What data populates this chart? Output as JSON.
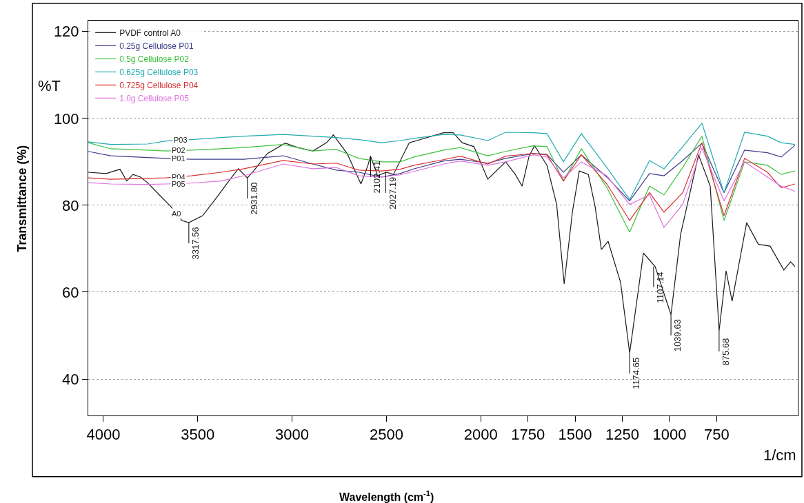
{
  "chart_data": {
    "type": "line",
    "xlabel": "Wavelength (cm$^{-1}$)",
    "ylabel": "Transmittance (%)",
    "x": [
      4080,
      3960,
      3766,
      3668,
      3533,
      3376,
      3255,
      3047,
      2890,
      2766,
      2646,
      2525,
      2427,
      2354,
      2197,
      2109,
      1963,
      1868,
      1722,
      1649,
      1562,
      1467,
      1332,
      1211,
      1106,
      1029,
      930,
      828,
      711,
      602,
      481,
      408,
      335
    ],
    "series": [
      {
        "name": "PVDF control A0",
        "color": "#1a1a1a",
        "x": [
          4080,
          3985,
          3912,
          3876,
          3843,
          3803,
          3766,
          3704,
          3642,
          3584,
          3547,
          3474,
          3401,
          3328,
          3285,
          3237,
          3204,
          3131,
          3036,
          2963,
          2890,
          2817,
          2781,
          2708,
          2635,
          2598,
          2584,
          2547,
          2500,
          2463,
          2379,
          2197,
          2146,
          2098,
          2036,
          1963,
          1868,
          1817,
          1781,
          1744,
          1715,
          1649,
          1598,
          1558,
          1514,
          1478,
          1430,
          1394,
          1361,
          1325,
          1259,
          1211,
          1138,
          1076,
          992,
          941,
          846,
          784,
          737,
          700,
          668,
          591,
          529,
          467,
          394,
          358,
          335
        ],
        "values": [
          87.6,
          87.3,
          88.3,
          85.6,
          87.1,
          86.5,
          85.2,
          82.4,
          79.7,
          76.5,
          76.0,
          77.6,
          81.7,
          86.0,
          88.4,
          86.3,
          87.9,
          91.9,
          94.3,
          93.2,
          92.5,
          94.4,
          96.2,
          91.9,
          84.9,
          89.2,
          91.3,
          86.8,
          87.6,
          87.1,
          94.4,
          96.7,
          96.7,
          94.4,
          93.5,
          86.0,
          90.0,
          87.1,
          84.4,
          91.3,
          93.7,
          89.2,
          80.2,
          61.9,
          78.6,
          87.9,
          87.1,
          79.7,
          69.8,
          71.7,
          62.2,
          46.0,
          69.0,
          65.9,
          54.8,
          73.3,
          91.6,
          84.4,
          51.1,
          64.9,
          57.9,
          76.0,
          71.0,
          70.6,
          65.1,
          67.0,
          65.9
        ]
      },
      {
        "name": "0.25g Cellulose P01",
        "color": "#3c3c8c",
        "values": [
          92.4,
          91.4,
          91.0,
          90.8,
          90.6,
          90.6,
          90.6,
          91.4,
          89.5,
          88.1,
          87.6,
          86.5,
          87.3,
          88.4,
          90.2,
          90.6,
          89.7,
          90.8,
          91.9,
          91.7,
          87.6,
          91.6,
          86.5,
          81.0,
          87.3,
          86.8,
          90.3,
          94.3,
          82.9,
          92.7,
          92.1,
          91.1,
          93.8
        ]
      },
      {
        "name": "0.5g Cellulose P02",
        "color": "#3cc03c",
        "values": [
          94.4,
          93.0,
          92.7,
          92.5,
          92.7,
          93.0,
          93.3,
          94.0,
          92.5,
          92.9,
          90.8,
          90.0,
          90.0,
          91.1,
          92.7,
          93.3,
          91.4,
          92.4,
          93.7,
          93.5,
          85.6,
          93.0,
          84.1,
          73.8,
          84.4,
          82.4,
          88.7,
          95.9,
          76.5,
          90.0,
          89.2,
          87.1,
          87.9
        ]
      },
      {
        "name": "0.625g Cellulose P03",
        "color": "#22aab0",
        "values": [
          94.6,
          94.0,
          94.1,
          94.8,
          95.1,
          95.6,
          95.9,
          96.3,
          95.9,
          95.6,
          95.1,
          94.4,
          94.9,
          95.4,
          96.3,
          96.2,
          94.9,
          96.8,
          96.7,
          96.5,
          90.0,
          96.5,
          88.7,
          81.3,
          90.3,
          88.4,
          93.5,
          98.9,
          82.9,
          96.8,
          95.9,
          94.4,
          94.0
        ]
      },
      {
        "name": "0.725g Cellulose P04",
        "color": "#d83030",
        "values": [
          86.3,
          86.0,
          86.2,
          86.3,
          86.8,
          87.6,
          88.4,
          90.3,
          89.5,
          89.7,
          88.1,
          87.9,
          88.3,
          89.2,
          90.5,
          91.3,
          89.5,
          91.3,
          91.9,
          91.6,
          85.6,
          91.6,
          84.9,
          76.5,
          82.9,
          78.4,
          82.9,
          94.4,
          77.6,
          90.8,
          87.6,
          84.0,
          84.9
        ]
      },
      {
        "name": "1.0g Cellulose P05",
        "color": "#e070e0",
        "values": [
          85.2,
          84.9,
          84.8,
          84.9,
          85.1,
          85.6,
          86.8,
          89.5,
          88.4,
          88.7,
          86.8,
          86.5,
          87.0,
          87.8,
          89.5,
          90.2,
          89.2,
          90.0,
          91.6,
          91.1,
          86.3,
          90.0,
          86.8,
          80.2,
          82.4,
          74.9,
          80.2,
          93.2,
          81.0,
          90.0,
          86.5,
          84.4,
          83.2
        ]
      }
    ],
    "xlim": [
      4080,
      320
    ],
    "xticks": [
      4000,
      3500,
      3000,
      2500,
      2000,
      1750,
      1500,
      1250,
      1000,
      750
    ],
    "ylim": [
      31.6,
      122.5
    ],
    "yticks": [
      40,
      60,
      80,
      100,
      120
    ],
    "grid": "y",
    "legend": "top left",
    "line_style": "solid",
    "annotations": [
      "%T",
      "1/cm",
      {
        "text": "3317.56",
        "x": 3547,
        "y": 76.0
      },
      {
        "text": "2931.80",
        "x": 3237,
        "y": 86.3
      },
      {
        "text": "2102.41",
        "x": 2584,
        "y": 91.3
      },
      {
        "text": "2027.19",
        "x": 2504,
        "y": 87.6
      },
      {
        "text": "1174.65",
        "x": 1211,
        "y": 46.0
      },
      {
        "text": "1107.14",
        "x": 1084,
        "y": 65.9
      },
      {
        "text": "1039.63",
        "x": 992,
        "y": 54.8
      },
      {
        "text": "875.68",
        "x": 737,
        "y": 51.1
      },
      {
        "text": "P03",
        "x": 3590,
        "y": 95.0
      },
      {
        "text": "P02",
        "x": 3600,
        "y": 92.6
      },
      {
        "text": "P01",
        "x": 3600,
        "y": 90.7
      },
      {
        "text": "P04",
        "x": 3600,
        "y": 86.5
      },
      {
        "text": "P05",
        "x": 3600,
        "y": 84.9
      },
      {
        "text": "A0",
        "x": 3613,
        "y": 78.1
      }
    ]
  }
}
